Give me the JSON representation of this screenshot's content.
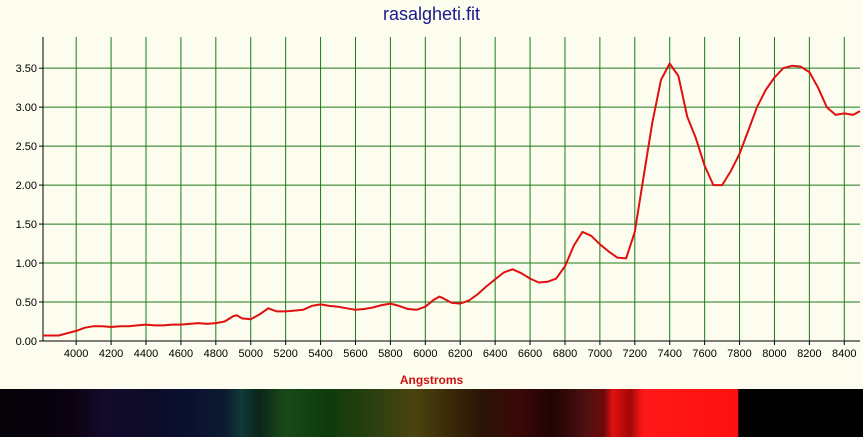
{
  "chart_data": {
    "type": "line",
    "title": "rasalgheti.fit",
    "xlabel": "Angstroms",
    "ylabel": "",
    "xlim": [
      3810,
      8490
    ],
    "ylim": [
      0,
      3.9
    ],
    "x_ticks": [
      "4000",
      "4200",
      "4400",
      "4600",
      "4800",
      "5000",
      "5200",
      "5400",
      "5600",
      "5800",
      "6000",
      "6200",
      "6400",
      "6600",
      "6800",
      "7000",
      "7200",
      "7400",
      "7600",
      "7800",
      "8000",
      "8200",
      "8400"
    ],
    "y_ticks": [
      "0.00",
      "0.50",
      "1.00",
      "1.50",
      "2.00",
      "2.50",
      "3.00",
      "3.50"
    ],
    "grid": true,
    "line_color": "#e01010",
    "grid_color": "#1a7a1a",
    "series": [
      {
        "x": [
          3810,
          3900,
          3950,
          4000,
          4050,
          4100,
          4150,
          4200,
          4250,
          4300,
          4350,
          4400,
          4450,
          4500,
          4550,
          4600,
          4650,
          4700,
          4750,
          4800,
          4850,
          4900,
          4920,
          4950,
          5000,
          5050,
          5100,
          5150,
          5200,
          5250,
          5300,
          5350,
          5400,
          5450,
          5500,
          5550,
          5600,
          5650,
          5700,
          5750,
          5800,
          5850,
          5900,
          5950,
          6000,
          6050,
          6080,
          6100,
          6150,
          6200,
          6250,
          6300,
          6350,
          6400,
          6450,
          6500,
          6550,
          6600,
          6650,
          6700,
          6750,
          6800,
          6850,
          6900,
          6950,
          7000,
          7050,
          7100,
          7150,
          7200,
          7250,
          7300,
          7350,
          7400,
          7450,
          7500,
          7550,
          7600,
          7650,
          7700,
          7750,
          7800,
          7850,
          7900,
          7950,
          8000,
          8050,
          8100,
          8150,
          8200,
          8250,
          8300,
          8350,
          8400,
          8450,
          8490
        ],
        "y": [
          0.07,
          0.07,
          0.1,
          0.13,
          0.17,
          0.19,
          0.19,
          0.18,
          0.19,
          0.19,
          0.2,
          0.21,
          0.2,
          0.2,
          0.21,
          0.21,
          0.22,
          0.23,
          0.22,
          0.23,
          0.25,
          0.32,
          0.33,
          0.29,
          0.28,
          0.34,
          0.42,
          0.38,
          0.38,
          0.39,
          0.4,
          0.45,
          0.47,
          0.45,
          0.44,
          0.42,
          0.4,
          0.41,
          0.43,
          0.46,
          0.48,
          0.45,
          0.41,
          0.4,
          0.44,
          0.53,
          0.57,
          0.55,
          0.49,
          0.48,
          0.52,
          0.6,
          0.7,
          0.79,
          0.88,
          0.92,
          0.87,
          0.8,
          0.75,
          0.76,
          0.8,
          0.96,
          1.22,
          1.4,
          1.35,
          1.24,
          1.15,
          1.07,
          1.06,
          1.4,
          2.1,
          2.8,
          3.35,
          3.56,
          3.4,
          2.88,
          2.6,
          2.25,
          2.0,
          2.0,
          2.18,
          2.4,
          2.7,
          3.0,
          3.22,
          3.38,
          3.5,
          3.53,
          3.52,
          3.45,
          3.25,
          3.0,
          2.9,
          2.92,
          2.9,
          2.95
        ]
      }
    ]
  }
}
